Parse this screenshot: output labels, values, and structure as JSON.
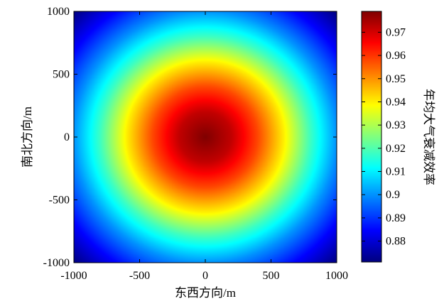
{
  "chart_data": {
    "type": "heatmap",
    "title": "",
    "xlabel": "东西方向/m",
    "ylabel": "南北方向/m",
    "colorbar_label": "年均大气衰减效率",
    "xlim": [
      -1000,
      1000
    ],
    "ylim": [
      -1000,
      1000
    ],
    "xticks": [
      -1000,
      -500,
      0,
      500,
      1000
    ],
    "yticks": [
      -1000,
      -500,
      0,
      500,
      1000
    ],
    "x_tick_labels": [
      "-1000",
      "-500",
      "0",
      "500",
      "1000"
    ],
    "y_tick_labels": [
      "-1000",
      "-500",
      "0",
      "500",
      "1000"
    ],
    "colorbar_range": [
      0.871,
      0.979
    ],
    "colorbar_ticks": [
      0.88,
      0.89,
      0.9,
      0.91,
      0.92,
      0.93,
      0.94,
      0.95,
      0.96,
      0.97
    ],
    "colorbar_tick_labels": [
      "0.88",
      "0.89",
      "0.9",
      "0.91",
      "0.92",
      "0.93",
      "0.94",
      "0.95",
      "0.96",
      "0.97"
    ],
    "colormap": "jet",
    "field": {
      "description": "radially symmetric field centered at (0,0); value decreases with distance r from center",
      "profile_r": [
        0,
        200,
        400,
        600,
        800,
        1000,
        1200,
        1414
      ],
      "profile_value": [
        0.979,
        0.972,
        0.958,
        0.94,
        0.918,
        0.9,
        0.885,
        0.871
      ]
    }
  }
}
